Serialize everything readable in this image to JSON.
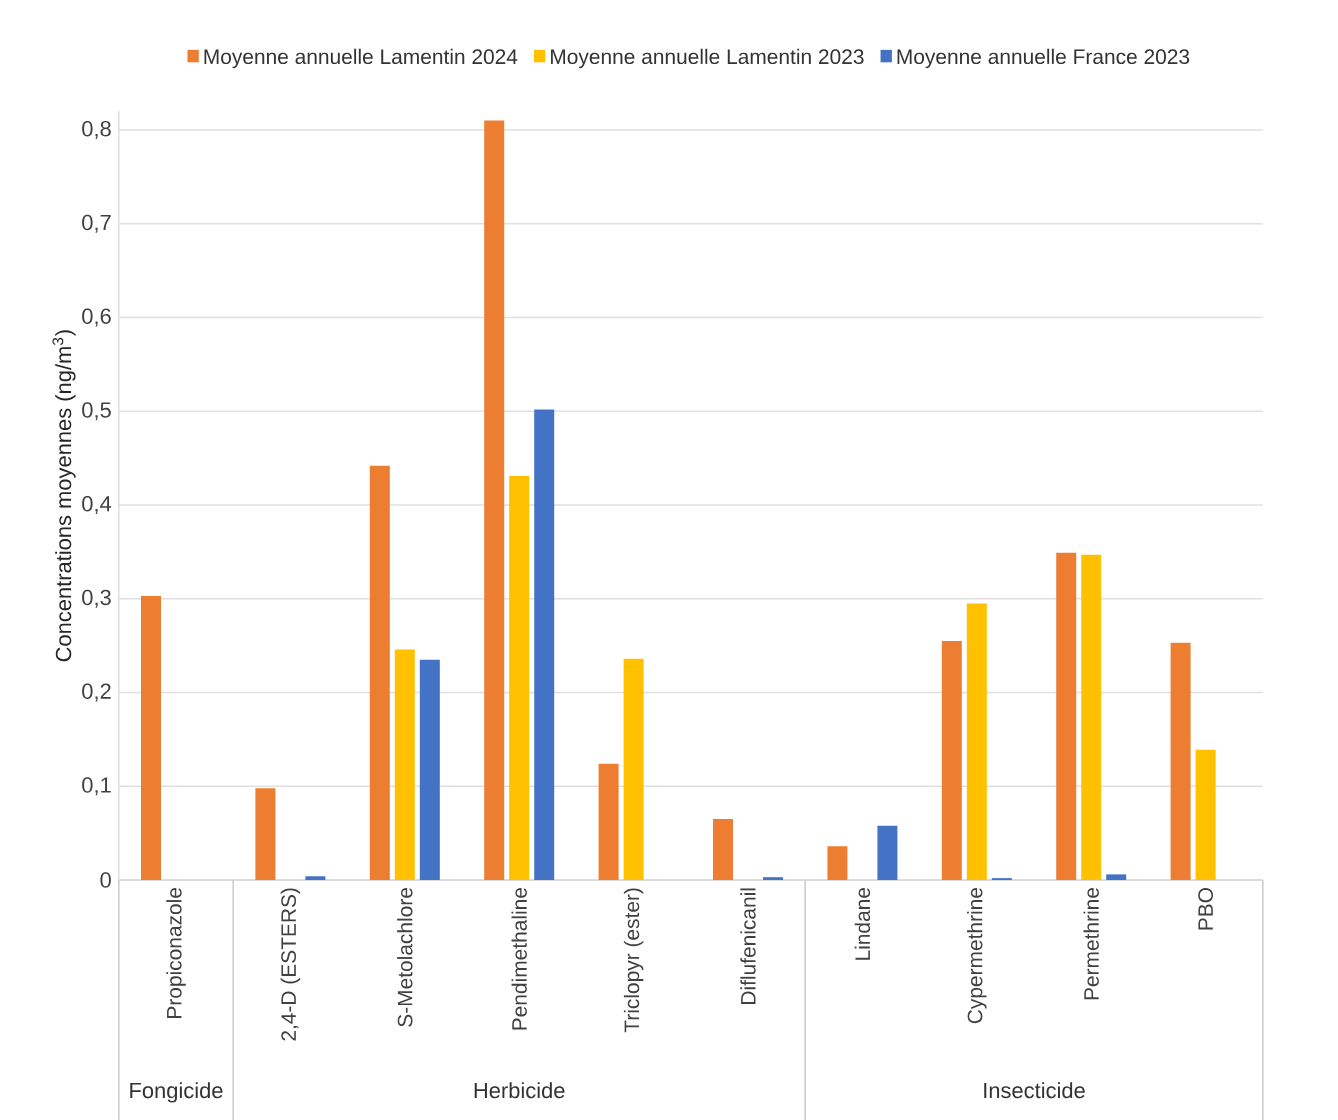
{
  "chart_data": {
    "type": "bar",
    "ylabel": "Concentrations moyennes (ng/m$^{3}$)",
    "categories": [
      "Propiconazole",
      "2,4-D (ESTERS)",
      "S-Metolachlore",
      "Pendimethaline",
      "Triclopyr (ester)",
      "Diflufenicanil",
      "Lindane",
      "Cypermethrine",
      "Permethrine",
      "PBO"
    ],
    "series": [
      {
        "name": "Moyenne annuelle Lamentin 2024",
        "color": "#ed7d31",
        "values": [
          0.303,
          0.098,
          0.442,
          0.81,
          0.124,
          0.065,
          0.036,
          0.255,
          0.349,
          0.253
        ]
      },
      {
        "name": "Moyenne annuelle Lamentin 2023",
        "color": "#ffc000",
        "values": [
          null,
          null,
          0.246,
          0.431,
          0.236,
          null,
          null,
          0.295,
          0.347,
          0.139
        ]
      },
      {
        "name": "Moyenne annuelle France 2023",
        "color": "#4472c4",
        "values": [
          null,
          0.004,
          0.235,
          0.502,
          null,
          0.003,
          0.058,
          0.002,
          0.006,
          null
        ]
      }
    ],
    "ylim": [
      0,
      0.82
    ],
    "yticks": [
      0,
      {
        "value": 0.1,
        "label": "0,1"
      },
      {
        "value": 0.2,
        "label": "0,2"
      },
      {
        "value": 0.3,
        "label": "0,3"
      },
      {
        "value": 0.4,
        "label": "0,4"
      },
      {
        "value": 0.5,
        "label": "0,5"
      },
      {
        "value": 0.6,
        "label": "0,6"
      },
      {
        "value": 0.7,
        "label": "0,7"
      },
      {
        "value": 0.8,
        "label": "0,8"
      }
    ],
    "grid": "y",
    "legend": "top",
    "annotations": [
      "Fongicide",
      "Herbicide",
      "Insecticide"
    ]
  }
}
